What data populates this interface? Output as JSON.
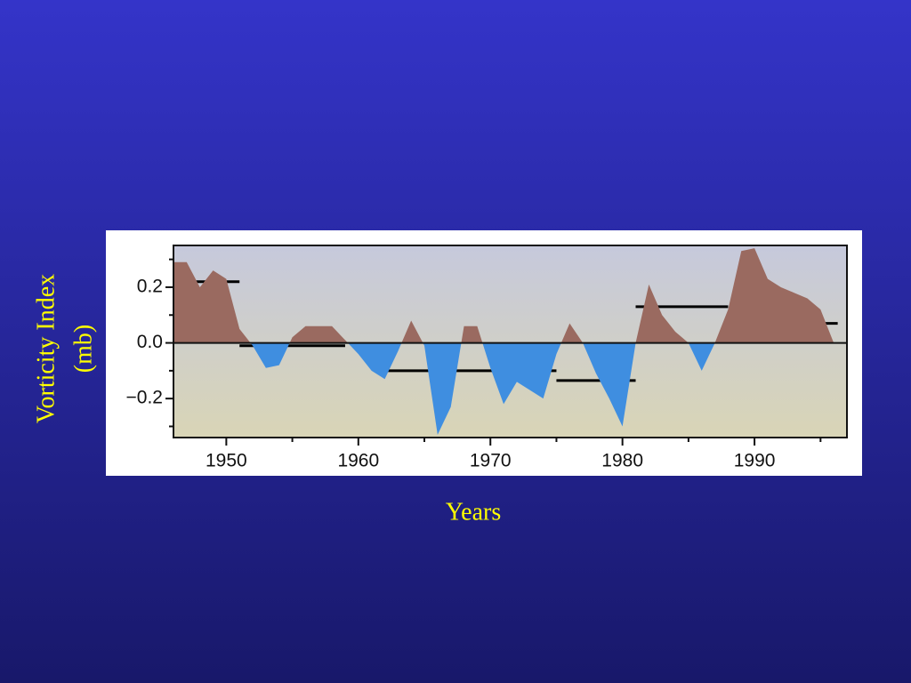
{
  "chart_data": {
    "type": "area",
    "ylabel": [
      "Vorticity Index",
      "(mb)"
    ],
    "xlabel": "Years",
    "x": [
      1946,
      1947,
      1948,
      1949,
      1950,
      1951,
      1952,
      1953,
      1954,
      1955,
      1956,
      1957,
      1958,
      1959,
      1960,
      1961,
      1962,
      1963,
      1964,
      1965,
      1966,
      1967,
      1968,
      1969,
      1970,
      1971,
      1972,
      1973,
      1974,
      1975,
      1976,
      1977,
      1978,
      1979,
      1980,
      1981,
      1982,
      1983,
      1984,
      1985,
      1986,
      1987,
      1988,
      1989,
      1990,
      1991,
      1992,
      1993,
      1994,
      1995,
      1996
    ],
    "values": [
      0.29,
      0.29,
      0.2,
      0.26,
      0.23,
      0.05,
      -0.01,
      -0.09,
      -0.08,
      0.02,
      0.06,
      0.06,
      0.06,
      0.01,
      -0.04,
      -0.1,
      -0.13,
      -0.03,
      0.08,
      -0.01,
      -0.33,
      -0.23,
      0.06,
      0.06,
      -0.09,
      -0.22,
      -0.14,
      -0.17,
      -0.2,
      -0.04,
      0.07,
      0.0,
      -0.11,
      -0.2,
      -0.3,
      0.0,
      0.21,
      0.1,
      0.04,
      0.0,
      -0.1,
      0.0,
      0.12,
      0.33,
      0.34,
      0.23,
      0.2,
      0.18,
      0.16,
      0.12,
      0.0
    ],
    "positive_color": "#9a6a60",
    "negative_color": "#3f8ee0",
    "segments": [
      {
        "x": [
          1946,
          1951
        ],
        "value": 0.22
      },
      {
        "x": [
          1951,
          1959
        ],
        "value": -0.01
      },
      {
        "x": [
          1962,
          1975
        ],
        "value": -0.1
      },
      {
        "x": [
          1975,
          1981
        ],
        "value": -0.135
      },
      {
        "x": [
          1981,
          1988
        ],
        "value": 0.13
      },
      {
        "x": [
          1988,
          1996.3
        ],
        "value": 0.07
      }
    ],
    "xlim": [
      1946,
      1997
    ],
    "ylim": [
      -0.34,
      0.35
    ],
    "xticks": [
      1950,
      1960,
      1970,
      1980,
      1990
    ],
    "xminorticks": [
      1955,
      1965,
      1975,
      1985,
      1995
    ],
    "yticks": [
      {
        "value": 0.2,
        "label": "0.2"
      },
      {
        "value": 0,
        "label": "0.0"
      },
      {
        "value": -0.2,
        "label": "−0.2"
      }
    ],
    "yminorticks": [
      0.3,
      0.1,
      -0.1,
      -0.3
    ]
  }
}
